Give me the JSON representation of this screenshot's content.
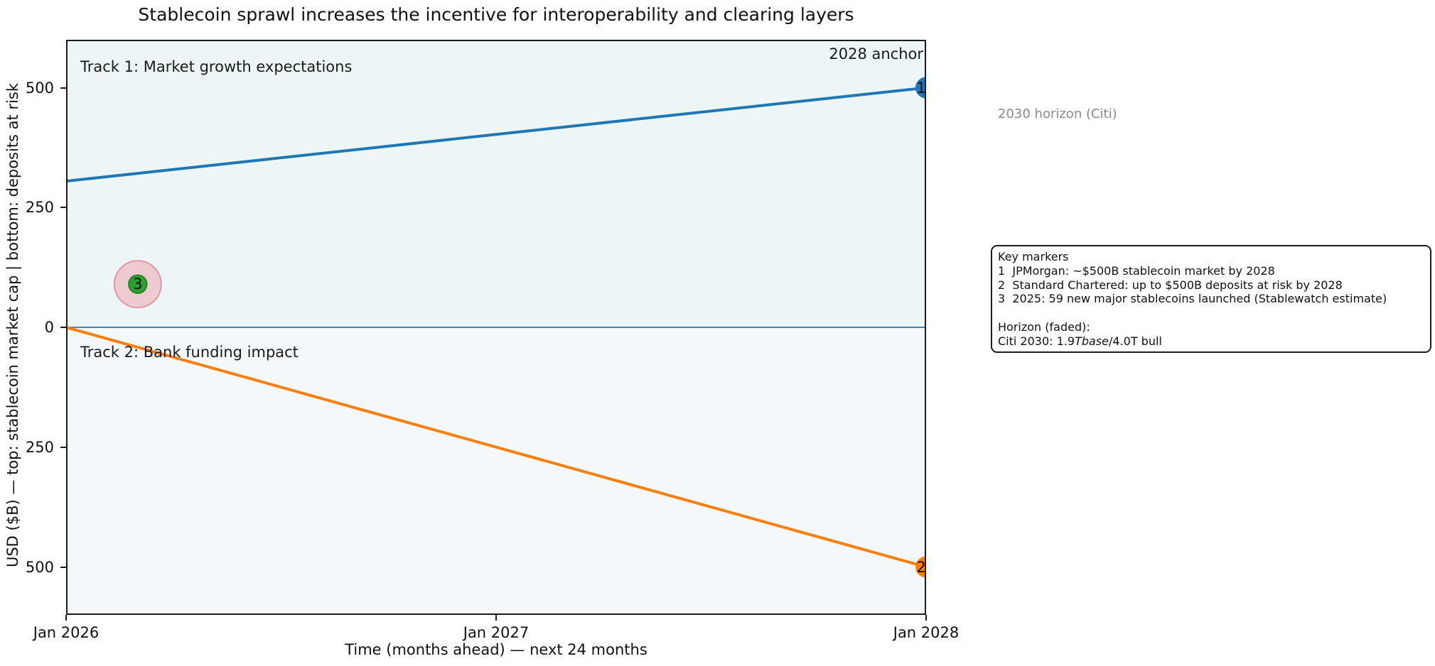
{
  "chart_data": {
    "type": "line",
    "title": "Stablecoin sprawl increases the incentive for interoperability and clearing layers",
    "xlabel": "Time (months ahead) — next 24 months",
    "ylabel": "USD ($B) — top: stablecoin market cap | bottom: deposits at risk",
    "xlim": [
      0,
      24
    ],
    "ylim": [
      -600,
      600
    ],
    "grid": false,
    "x_ticks": [
      {
        "x": 0,
        "label": "Jan 2026"
      },
      {
        "x": 12,
        "label": "Jan 2027"
      },
      {
        "x": 24,
        "label": "Jan 2028"
      }
    ],
    "y_ticks": [
      {
        "y": 500,
        "label": "500"
      },
      {
        "y": 250,
        "label": "250"
      },
      {
        "y": 0,
        "label": "0"
      },
      {
        "y": -250,
        "label": "250"
      },
      {
        "y": -500,
        "label": "500"
      }
    ],
    "background_bands": [
      {
        "from": 0,
        "to": 600,
        "color": "#edf6f6"
      },
      {
        "from": -600,
        "to": 0,
        "color": "#f5f8fa"
      }
    ],
    "zero_line": {
      "y": 0,
      "color": "#4682b4",
      "width": 2
    },
    "series": [
      {
        "name": "Track 1: Market growth expectations",
        "color": "#1f77b4",
        "width": 4,
        "points": [
          [
            0,
            305
          ],
          [
            24,
            500
          ]
        ]
      },
      {
        "name": "Track 2: Bank funding impact",
        "color": "#ff7f0e",
        "width": 4,
        "points": [
          [
            0,
            0
          ],
          [
            24,
            -500
          ]
        ]
      }
    ],
    "markers": [
      {
        "label": "1",
        "x": 24,
        "y": 500,
        "fill": "#1f77b4",
        "r": 15
      },
      {
        "label": "2",
        "x": 24,
        "y": -500,
        "fill": "#ff7f0e",
        "r": 15
      },
      {
        "label": "3",
        "x": 2,
        "y": 90,
        "fill": "#2ca02c",
        "r": 13,
        "halo": {
          "r": 33,
          "fill": "rgba(240,160,172,0.5)",
          "stroke": "rgba(228,130,148,0.8)"
        }
      }
    ],
    "annotations": {
      "track1": "Track 1: Market growth expectations",
      "track2": "Track 2: Bank funding impact",
      "anchor_2028": "2028 anchor",
      "horizon_2030": "2030 horizon (Citi)"
    }
  },
  "legend": {
    "lines": [
      {
        "segments": [
          {
            "text": "Key markers"
          }
        ]
      },
      {
        "segments": [
          {
            "text": "1  JPMorgan: ~$500B stablecoin market by 2028"
          }
        ]
      },
      {
        "segments": [
          {
            "text": "2  Standard Chartered: up to $500B deposits at risk by 2028"
          }
        ]
      },
      {
        "segments": [
          {
            "text": "3  2025: 59 new major stablecoins launched (Stablewatch estimate)"
          }
        ]
      },
      {
        "segments": [
          {
            "text": ""
          }
        ]
      },
      {
        "segments": [
          {
            "text": "Horizon (faded):"
          }
        ]
      },
      {
        "segments": [
          {
            "text": "Citi 2030: 1.9"
          },
          {
            "text": "Tbase",
            "italic": true
          },
          {
            "text": "/4.0T bull"
          }
        ]
      }
    ]
  },
  "colors": {
    "spine": "#1a1a1a",
    "text": "#111111",
    "muted_text": "#8a8a8a",
    "track1_blue": "#1f77b4",
    "track2_orange": "#ff7f0e",
    "marker3_green": "#2ca02c",
    "halo_pink": "rgba(240,160,172,0.5)",
    "zero_line_blue": "#4682b4",
    "band_top": "#edf6f6",
    "band_bottom": "#f5f8fa"
  }
}
